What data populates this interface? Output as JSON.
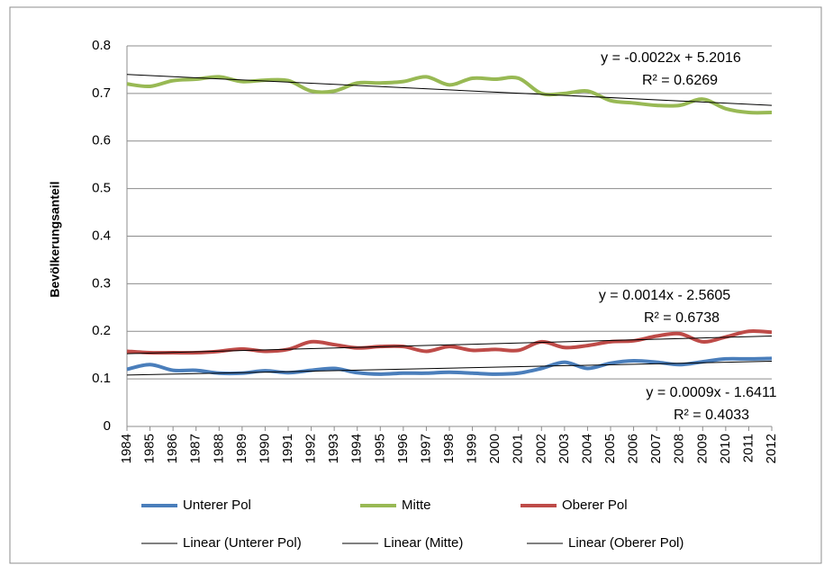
{
  "chart_data": {
    "type": "line",
    "y_label": "Bevölkerungsanteil",
    "x": [
      1984,
      1985,
      1986,
      1987,
      1988,
      1989,
      1990,
      1991,
      1992,
      1993,
      1994,
      1995,
      1996,
      1997,
      1998,
      1999,
      2000,
      2001,
      2002,
      2003,
      2004,
      2005,
      2006,
      2007,
      2008,
      2009,
      2010,
      2011,
      2012
    ],
    "xlim": [
      1984,
      2012
    ],
    "ylim": [
      0,
      0.8
    ],
    "yticks": [
      0,
      0.1,
      0.2,
      0.3,
      0.4,
      0.5,
      0.6,
      0.7,
      0.8
    ],
    "grid": true,
    "series": [
      {
        "name": "Unterer Pol",
        "color": "#4a7ebb",
        "values": [
          0.12,
          0.13,
          0.118,
          0.118,
          0.112,
          0.112,
          0.117,
          0.113,
          0.118,
          0.122,
          0.113,
          0.11,
          0.112,
          0.112,
          0.114,
          0.112,
          0.11,
          0.112,
          0.122,
          0.135,
          0.122,
          0.133,
          0.138,
          0.135,
          0.13,
          0.136,
          0.142,
          0.142,
          0.143
        ]
      },
      {
        "name": "Mitte",
        "color": "#98b954",
        "values": [
          0.72,
          0.715,
          0.727,
          0.73,
          0.735,
          0.725,
          0.728,
          0.727,
          0.705,
          0.705,
          0.722,
          0.722,
          0.725,
          0.735,
          0.718,
          0.732,
          0.73,
          0.732,
          0.7,
          0.7,
          0.705,
          0.685,
          0.68,
          0.675,
          0.675,
          0.688,
          0.668,
          0.66,
          0.66
        ]
      },
      {
        "name": "Oberer Pol",
        "color": "#be4b48",
        "values": [
          0.158,
          0.155,
          0.155,
          0.155,
          0.158,
          0.163,
          0.158,
          0.162,
          0.178,
          0.172,
          0.165,
          0.168,
          0.168,
          0.158,
          0.168,
          0.16,
          0.162,
          0.16,
          0.178,
          0.166,
          0.17,
          0.178,
          0.18,
          0.19,
          0.195,
          0.178,
          0.188,
          0.2,
          0.198
        ]
      }
    ],
    "trendlines": [
      {
        "name": "Linear (Unterer Pol)",
        "color": "#000000",
        "x": [
          1984,
          2012
        ],
        "values": [
          0.108,
          0.137
        ],
        "equation": "y = 0.0009x - 1.6411",
        "r2": "R² = 0.4033"
      },
      {
        "name": "Linear (Mitte)",
        "color": "#000000",
        "x": [
          1984,
          2012
        ],
        "values": [
          0.74,
          0.675
        ],
        "equation": "y = -0.0022x + 5.2016",
        "r2": "R² = 0.6269"
      },
      {
        "name": "Linear (Oberer Pol)",
        "color": "#000000",
        "x": [
          1984,
          2012
        ],
        "values": [
          0.153,
          0.19
        ],
        "equation": "y = 0.0014x - 2.5605",
        "r2": "R² = 0.6738"
      }
    ]
  }
}
